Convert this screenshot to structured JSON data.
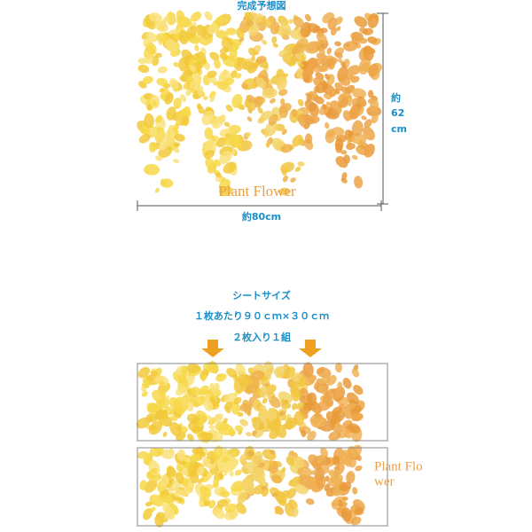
{
  "preview": {
    "title": "完成予想図",
    "height": {
      "prefix": "約",
      "value": "62",
      "unit": "cm"
    },
    "width": "約80cm",
    "logo": "Plant Flower"
  },
  "sheet": {
    "title": "シートサイズ",
    "size": "１枚あたり９０ｃｍ×３０ｃｍ",
    "count": "２枚入り１組",
    "logo": [
      "Plant Flo",
      "wer"
    ]
  }
}
